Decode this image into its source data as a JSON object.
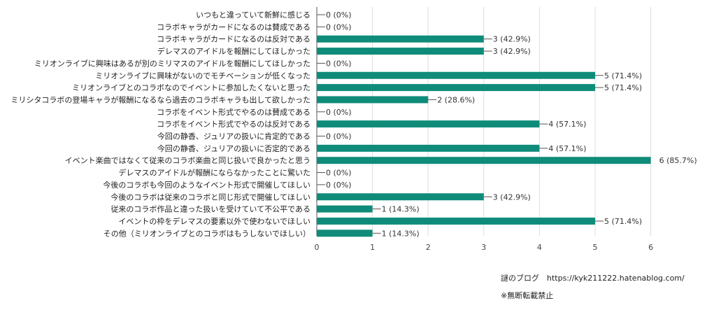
{
  "chart_data": {
    "type": "bar",
    "orientation": "horizontal",
    "categories": [
      "いつもと違っていて新鮮に感じる",
      "コラボキャラがカードになるのは賛成である",
      "コラボキャラがカードになるのは反対である",
      "デレマスのアイドルを報酬にしてほしかった",
      "ミリオンライブに興味はあるが別のミリマスのアイドルを報酬にしてほしかった",
      "ミリオンライブに興味がないのでモチベーションが低くなった",
      "ミリオンライブとのコラボなのでイベントに参加したくないと思った",
      "ミリシタコラボの登場キャラが報酬になるなら過去のコラボキャラも出して欲しかった",
      "コラボをイベント形式でやるのは賛成である",
      "コラボをイベント形式でやるのは反対である",
      "今回の静香、ジュリアの扱いに肯定的である",
      "今回の静香、ジュリアの扱いに否定的である",
      "イベント楽曲ではなくて従来のコラボ楽曲と同じ扱いで良かったと思う",
      "デレマスのアイドルが報酬にならなかったことに驚いた",
      "今後のコラボも今回のようなイベント形式で開催してほしい",
      "今後のコラボは従来のコラボと同じ形式で開催してほしい",
      "従来のコラボ作品と違った扱いを受けていて不公平である",
      "イベントの枠をデレマスの要素以外で使わないでほしい",
      "その他（ミリオンライブとのコラボはもうしないでほしい）"
    ],
    "values": [
      0,
      0,
      3,
      3,
      0,
      5,
      5,
      2,
      0,
      4,
      0,
      4,
      6,
      0,
      0,
      3,
      1,
      5,
      1
    ],
    "value_labels": [
      "0 (0%)",
      "0 (0%)",
      "3 (42.9%)",
      "3 (42.9%)",
      "0 (0%)",
      "5 (71.4%)",
      "5 (71.4%)",
      "2 (28.6%)",
      "0 (0%)",
      "4 (57.1%)",
      "0 (0%)",
      "4 (57.1%)",
      "6 (85.7%)",
      "0 (0%)",
      "0 (0%)",
      "3 (42.9%)",
      "1 (14.3%)",
      "5 (71.4%)",
      "1 (14.3%)"
    ],
    "xticks": [
      "0",
      "1",
      "2",
      "3",
      "4",
      "5",
      "6"
    ],
    "xlim": [
      0,
      6
    ],
    "grid": true,
    "bar_color": "#0f8c79"
  },
  "footer": {
    "blog": "謎のブログ　https://kyk211222.hatenablog.com/",
    "notice": "※無断転載禁止"
  }
}
